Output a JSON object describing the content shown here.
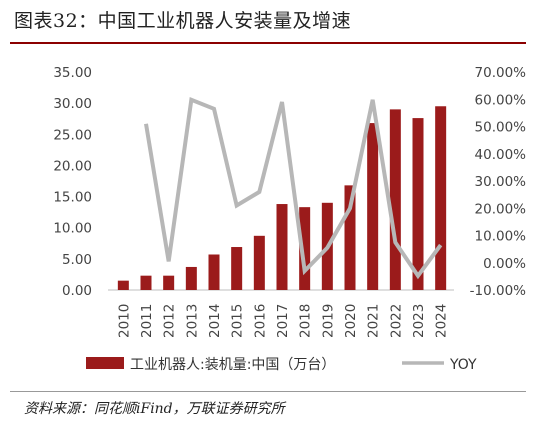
{
  "header": {
    "title": "图表32：中国工业机器人安装量及增速"
  },
  "footer": {
    "source": "资料来源：同花顺iFind，万联证券研究所"
  },
  "chart_data": {
    "type": "bar",
    "categories": [
      "2010",
      "2011",
      "2012",
      "2013",
      "2014",
      "2015",
      "2016",
      "2017",
      "2018",
      "2019",
      "2020",
      "2021",
      "2022",
      "2023",
      "2024"
    ],
    "series": [
      {
        "name": "工业机器人:装机量:中国（万台）",
        "type": "bar",
        "axis": "left",
        "color": "#9b1b1b",
        "values": [
          1.5,
          2.3,
          2.3,
          3.7,
          5.7,
          6.9,
          8.7,
          13.8,
          13.3,
          14.0,
          16.8,
          26.8,
          29.0,
          27.6,
          29.5
        ]
      },
      {
        "name": "YOY",
        "type": "line",
        "axis": "right",
        "color": "#b7b7b7",
        "values": [
          null,
          51.0,
          0.5,
          59.8,
          56.5,
          21.0,
          26.0,
          59.0,
          -3.0,
          5.5,
          20.0,
          59.8,
          7.5,
          -4.8,
          6.5
        ]
      }
    ],
    "y_left": {
      "ticks": [
        "35.00",
        "30.00",
        "25.00",
        "20.00",
        "15.00",
        "10.00",
        "5.00",
        "0.00"
      ],
      "ylim": [
        0,
        35
      ]
    },
    "y_right": {
      "ticks": [
        "70.00%",
        "60.00%",
        "50.00%",
        "40.00%",
        "30.00%",
        "20.00%",
        "10.00%",
        "0.00%",
        "-10.00%"
      ],
      "ylim": [
        -10,
        70
      ]
    },
    "grid": false,
    "legend_position": "bottom"
  }
}
